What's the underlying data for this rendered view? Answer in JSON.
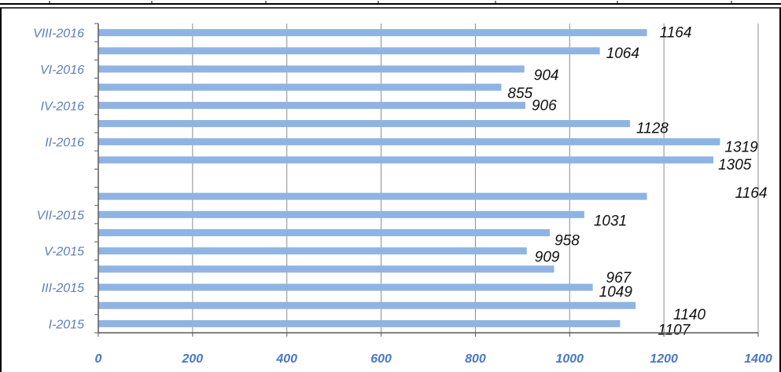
{
  "colors": {
    "bar": "#8fb4e3",
    "grid": "#8c8c8c",
    "axis": "#595959",
    "category_label": "#5b7fb8",
    "tick_label": "#4a78c4",
    "data_label": "#111111"
  },
  "chart_data": {
    "type": "bar",
    "orientation": "horizontal",
    "title": "",
    "xlabel": "",
    "ylabel": "",
    "xlim": [
      0,
      1400
    ],
    "x_ticks": [
      0,
      200,
      400,
      600,
      800,
      1000,
      1200,
      1400
    ],
    "grid": "vertical",
    "legend": "none",
    "categories": [
      "VIII-2016",
      "",
      "VI-2016",
      "",
      "IV-2016",
      "",
      "II-2016",
      "",
      "",
      "",
      "VII-2015",
      "",
      "V-2015",
      "",
      "III-2015",
      "",
      "I-2015"
    ],
    "values": [
      1164,
      1064,
      904,
      855,
      906,
      1128,
      1319,
      1305,
      null,
      1164,
      1031,
      958,
      909,
      967,
      1049,
      1140,
      1107
    ],
    "data_labels": [
      "1164",
      "1064",
      "904",
      "855",
      "906",
      "1128",
      "1319",
      "1305",
      "",
      "1164",
      "1031",
      "958",
      "909",
      "967",
      "1049",
      "1140",
      "1107"
    ]
  }
}
